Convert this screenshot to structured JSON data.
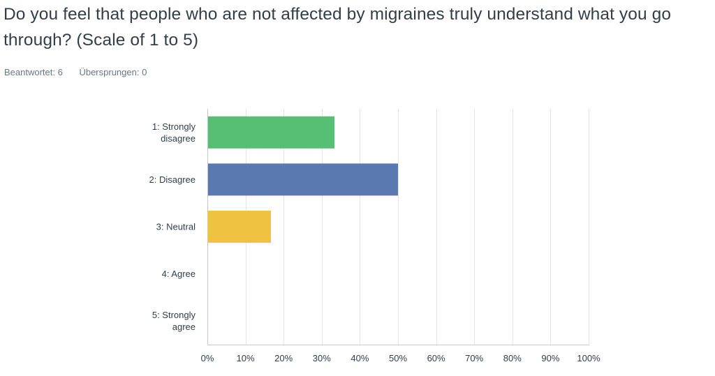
{
  "question": {
    "title": "Do you feel that people who are not affected by migraines truly understand what you go through? (Scale of 1 to 5)"
  },
  "stats": {
    "answered": "Beantwortet: 6",
    "skipped": "Übersprungen: 0"
  },
  "chart_data": {
    "type": "bar",
    "orientation": "horizontal",
    "categories": [
      [
        "1: Strongly",
        "disagree"
      ],
      [
        "2: Disagree"
      ],
      [
        "3: Neutral"
      ],
      [
        "4: Agree"
      ],
      [
        "5: Strongly",
        "agree"
      ]
    ],
    "values": [
      33.33,
      50.0,
      16.67,
      0,
      0
    ],
    "colors": [
      "#57bf74",
      "#5a79b1",
      "#efc242",
      "#e06c4e",
      "#8c6aa8"
    ],
    "xlim": [
      0,
      100
    ],
    "xticks": [
      0,
      10,
      20,
      30,
      40,
      50,
      60,
      70,
      80,
      90,
      100
    ],
    "xtick_labels": [
      "0%",
      "10%",
      "20%",
      "30%",
      "40%",
      "50%",
      "60%",
      "70%",
      "80%",
      "90%",
      "100%"
    ],
    "grid": true,
    "title": "",
    "xlabel": "",
    "ylabel": ""
  }
}
